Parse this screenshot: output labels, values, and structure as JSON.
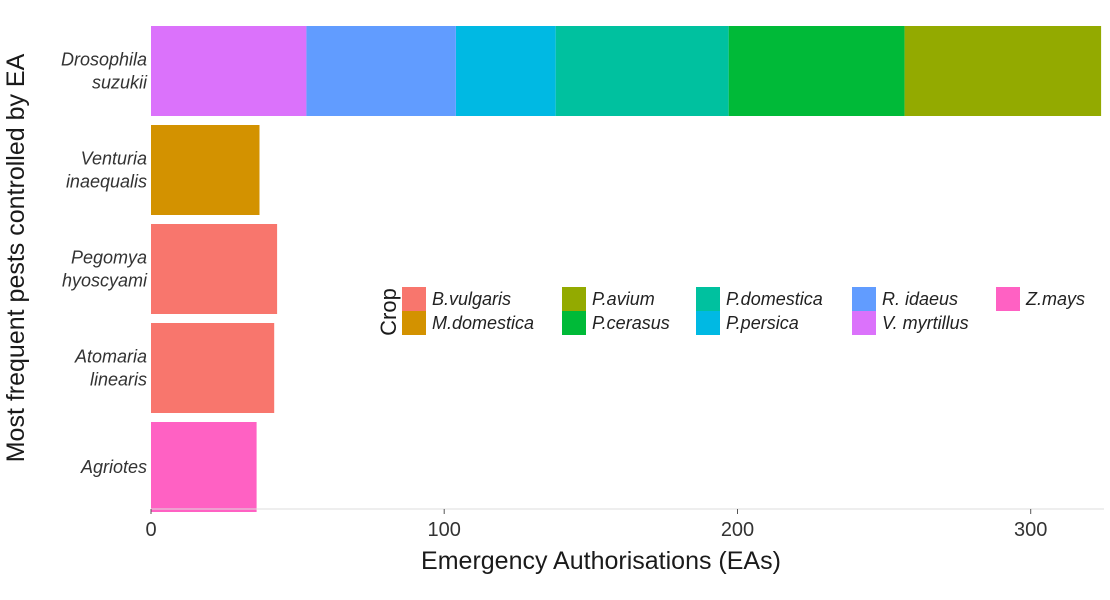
{
  "chart_data": {
    "type": "bar",
    "orientation": "horizontal",
    "stacked": true,
    "title": "",
    "xlabel": "Emergency Authorisations (EAs)",
    "ylabel": "Most frequent pests controlled by EA",
    "xlim": [
      0,
      325
    ],
    "xticks": [
      0,
      100,
      200,
      300
    ],
    "grid": false,
    "legend": {
      "title": "Crop",
      "placement": "center-right",
      "columns": [
        [
          "B.vulgaris",
          "M.domestica"
        ],
        [
          "P.avium",
          "P.cerasus"
        ],
        [
          "P.domestica",
          "P.persica"
        ],
        [
          "R. idaeus",
          "V. myrtillus"
        ],
        [
          "Z.mays"
        ]
      ]
    },
    "categories": [
      [
        "Drosophila",
        "suzukii"
      ],
      [
        "Venturia",
        "inaequalis"
      ],
      [
        "Pegomya",
        "hyoscyami"
      ],
      [
        "Atomaria",
        "linearis"
      ],
      [
        "Agriotes"
      ]
    ],
    "series": [
      {
        "name": "B.vulgaris",
        "color": "#F8766D",
        "values": [
          0,
          0,
          43,
          42,
          0
        ]
      },
      {
        "name": "M.domestica",
        "color": "#D39200",
        "values": [
          0,
          37,
          0,
          0,
          0
        ]
      },
      {
        "name": "P.avium",
        "color": "#93AA00",
        "values": [
          67,
          0,
          0,
          0,
          0
        ]
      },
      {
        "name": "P.cerasus",
        "color": "#00BA38",
        "values": [
          60,
          0,
          0,
          0,
          0
        ]
      },
      {
        "name": "P.domestica",
        "color": "#00C19F",
        "values": [
          59,
          0,
          0,
          0,
          0
        ]
      },
      {
        "name": "P.persica",
        "color": "#00B9E3",
        "values": [
          34,
          0,
          0,
          0,
          0
        ]
      },
      {
        "name": "R. idaeus",
        "color": "#619CFF",
        "values": [
          51,
          0,
          0,
          0,
          0
        ]
      },
      {
        "name": "V. myrtillus",
        "color": "#DB72FB",
        "values": [
          53,
          0,
          0,
          0,
          0
        ]
      },
      {
        "name": "Z.mays",
        "color": "#FF61C3",
        "values": [
          0,
          0,
          0,
          0,
          36
        ]
      }
    ],
    "stack_order": [
      "V. myrtillus",
      "R. idaeus",
      "P.persica",
      "P.domestica",
      "P.cerasus",
      "P.avium",
      "M.domestica",
      "B.vulgaris",
      "Z.mays"
    ]
  }
}
